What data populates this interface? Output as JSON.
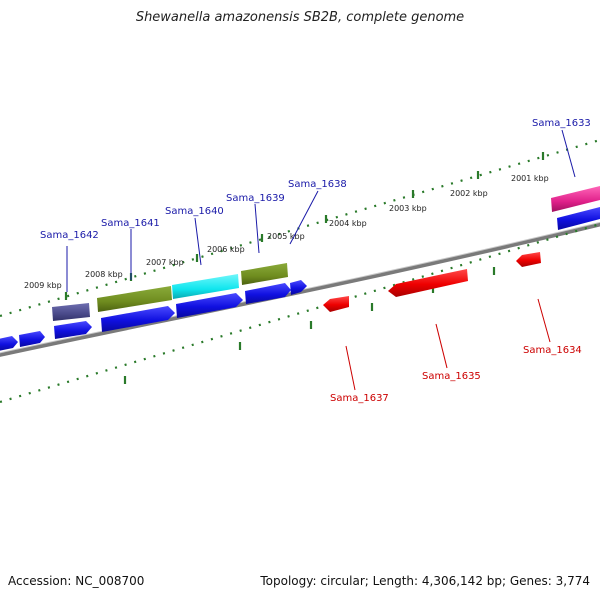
{
  "title": "Shewanella amazonensis SB2B, complete genome",
  "footer": {
    "accession": "Accession: NC_008700",
    "summary": "Topology: circular; Length: 4,306,142 bp; Genes: 3,774"
  },
  "scale_labels": [
    "2001 kbp",
    "2002 kbp",
    "2003 kbp",
    "2004 kbp",
    "2005 kbp",
    "2006 kbp",
    "2007 kbp",
    "2008 kbp",
    "2009 kbp"
  ],
  "genes_top": [
    "Sama_1633",
    "Sama_1638",
    "Sama_1639",
    "Sama_1640",
    "Sama_1641",
    "Sama_1642"
  ],
  "genes_bottom": [
    "Sama_1634",
    "Sama_1635",
    "Sama_1637"
  ],
  "colors": {
    "forward_cds": "#1010e0",
    "reverse_cds": "#ee0000",
    "olive": "#6f8c1f",
    "cyan": "#10e6ee",
    "slate": "#4a4a8a",
    "pink": "#e0208a",
    "tick": "#2a7a2a",
    "backbone": "#7a7a7a",
    "label_top": "#1a1aa8",
    "label_bottom": "#cc0000"
  }
}
